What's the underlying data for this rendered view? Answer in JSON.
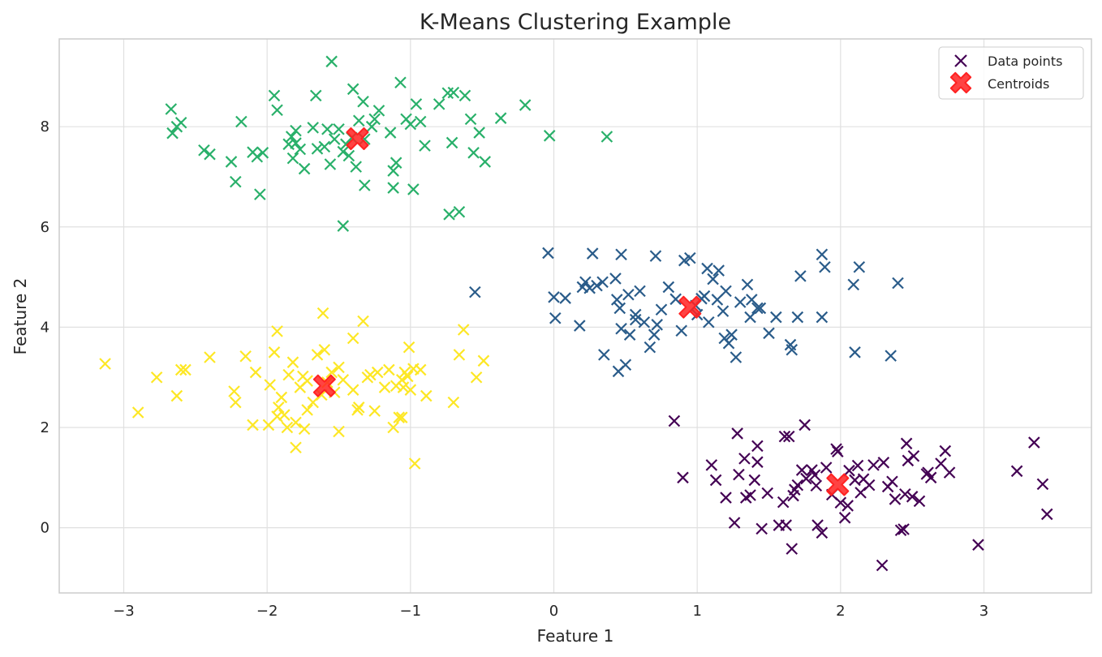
{
  "chart_data": {
    "type": "scatter",
    "title": "K-Means Clustering Example",
    "xlabel": "Feature 1",
    "ylabel": "Feature 2",
    "xlim": [
      -3.45,
      3.75
    ],
    "ylim": [
      -1.3,
      9.75
    ],
    "xticks": [
      -3,
      -2,
      -1,
      0,
      1,
      2,
      3
    ],
    "yticks": [
      0,
      2,
      4,
      6,
      8
    ],
    "xtick_labels": [
      "−3",
      "−2",
      "−1",
      "0",
      "1",
      "2",
      "3"
    ],
    "ytick_labels": [
      "0",
      "2",
      "4",
      "6",
      "8"
    ],
    "grid": true,
    "legend_position": "top-right",
    "marker": "x",
    "legend": [
      {
        "label": "Data points",
        "marker": "x",
        "color": "#440154"
      },
      {
        "label": "Centroids",
        "marker": "X",
        "color": "#ff2222"
      }
    ],
    "clusters": [
      {
        "color": "#440154",
        "points": [
          [
            0.9,
            1.0
          ],
          [
            0.84,
            2.13
          ],
          [
            1.1,
            1.25
          ],
          [
            1.13,
            0.95
          ],
          [
            1.2,
            0.6
          ],
          [
            1.26,
            0.1
          ],
          [
            1.28,
            1.88
          ],
          [
            1.29,
            1.06
          ],
          [
            1.33,
            1.38
          ],
          [
            1.34,
            0.6
          ],
          [
            1.37,
            0.65
          ],
          [
            1.4,
            0.95
          ],
          [
            1.42,
            1.63
          ],
          [
            1.42,
            1.31
          ],
          [
            1.45,
            -0.02
          ],
          [
            1.49,
            0.69
          ],
          [
            1.57,
            0.05
          ],
          [
            1.6,
            0.51
          ],
          [
            1.61,
            1.82
          ],
          [
            1.62,
            0.05
          ],
          [
            1.64,
            1.82
          ],
          [
            1.66,
            -0.42
          ],
          [
            1.67,
            0.64
          ],
          [
            1.68,
            0.76
          ],
          [
            1.7,
            0.85
          ],
          [
            1.73,
            1.15
          ],
          [
            1.75,
            2.05
          ],
          [
            1.76,
            0.98
          ],
          [
            1.8,
            1.15
          ],
          [
            1.82,
            1.05
          ],
          [
            1.83,
            0.84
          ],
          [
            1.84,
            0.05
          ],
          [
            1.87,
            -0.1
          ],
          [
            1.9,
            1.2
          ],
          [
            1.94,
            0.66
          ],
          [
            1.97,
            1.57
          ],
          [
            1.98,
            1.52
          ],
          [
            2.0,
            0.5
          ],
          [
            2.03,
            0.2
          ],
          [
            2.05,
            0.44
          ],
          [
            2.06,
            1.14
          ],
          [
            2.1,
            0.95
          ],
          [
            2.12,
            1.24
          ],
          [
            2.14,
            0.7
          ],
          [
            2.16,
            0.97
          ],
          [
            2.2,
            0.85
          ],
          [
            2.23,
            1.25
          ],
          [
            2.29,
            -0.75
          ],
          [
            2.3,
            1.3
          ],
          [
            2.33,
            0.82
          ],
          [
            2.36,
            0.92
          ],
          [
            2.38,
            0.57
          ],
          [
            2.42,
            -0.05
          ],
          [
            2.44,
            -0.03
          ],
          [
            2.45,
            0.67
          ],
          [
            2.46,
            1.68
          ],
          [
            2.47,
            1.34
          ],
          [
            2.5,
            0.62
          ],
          [
            2.51,
            1.43
          ],
          [
            2.55,
            0.53
          ],
          [
            2.6,
            1.07
          ],
          [
            2.61,
            1.1
          ],
          [
            2.63,
            1.0
          ],
          [
            2.7,
            1.28
          ],
          [
            2.73,
            1.53
          ],
          [
            2.76,
            1.1
          ],
          [
            2.96,
            -0.34
          ],
          [
            3.23,
            1.13
          ],
          [
            3.35,
            1.7
          ],
          [
            3.41,
            0.87
          ],
          [
            3.44,
            0.27
          ]
        ]
      },
      {
        "color": "#21908d",
        "display_color": "#2a5c8a",
        "points": [
          [
            -0.55,
            4.7
          ],
          [
            -0.04,
            5.48
          ],
          [
            0.0,
            4.6
          ],
          [
            0.01,
            4.18
          ],
          [
            0.08,
            4.58
          ],
          [
            0.18,
            4.03
          ],
          [
            0.2,
            4.8
          ],
          [
            0.22,
            4.9
          ],
          [
            0.25,
            4.78
          ],
          [
            0.27,
            5.47
          ],
          [
            0.3,
            4.83
          ],
          [
            0.34,
            4.9
          ],
          [
            0.35,
            3.45
          ],
          [
            0.43,
            4.97
          ],
          [
            0.44,
            4.55
          ],
          [
            0.45,
            3.12
          ],
          [
            0.46,
            4.38
          ],
          [
            0.47,
            5.45
          ],
          [
            0.47,
            3.97
          ],
          [
            0.5,
            3.25
          ],
          [
            0.52,
            4.65
          ],
          [
            0.53,
            3.85
          ],
          [
            0.57,
            4.25
          ],
          [
            0.57,
            4.15
          ],
          [
            0.6,
            4.72
          ],
          [
            0.63,
            4.1
          ],
          [
            0.67,
            3.6
          ],
          [
            0.7,
            3.85
          ],
          [
            0.71,
            5.42
          ],
          [
            0.72,
            4.05
          ],
          [
            0.75,
            4.35
          ],
          [
            0.8,
            4.8
          ],
          [
            0.85,
            4.56
          ],
          [
            0.89,
            3.93
          ],
          [
            0.91,
            5.33
          ],
          [
            0.95,
            5.38
          ],
          [
            0.99,
            4.43
          ],
          [
            1.0,
            4.25
          ],
          [
            1.03,
            4.57
          ],
          [
            1.05,
            4.62
          ],
          [
            1.07,
            5.17
          ],
          [
            1.08,
            4.1
          ],
          [
            1.11,
            4.96
          ],
          [
            1.14,
            4.55
          ],
          [
            1.15,
            5.13
          ],
          [
            1.18,
            4.32
          ],
          [
            1.19,
            3.78
          ],
          [
            1.2,
            4.72
          ],
          [
            1.22,
            3.68
          ],
          [
            1.24,
            3.85
          ],
          [
            1.27,
            3.4
          ],
          [
            1.3,
            4.5
          ],
          [
            1.35,
            4.85
          ],
          [
            1.37,
            4.2
          ],
          [
            1.38,
            4.55
          ],
          [
            1.42,
            4.38
          ],
          [
            1.44,
            4.38
          ],
          [
            1.5,
            3.88
          ],
          [
            1.55,
            4.2
          ],
          [
            1.65,
            3.65
          ],
          [
            1.66,
            3.55
          ],
          [
            1.7,
            4.2
          ],
          [
            1.72,
            5.02
          ],
          [
            1.87,
            5.45
          ],
          [
            1.87,
            4.2
          ],
          [
            1.89,
            5.2
          ],
          [
            2.09,
            4.85
          ],
          [
            2.1,
            3.5
          ],
          [
            2.13,
            5.2
          ],
          [
            2.35,
            3.43
          ],
          [
            2.4,
            4.88
          ]
        ]
      },
      {
        "color": "#22a884",
        "display_color": "#29b06a",
        "points": [
          [
            -2.67,
            8.35
          ],
          [
            -2.66,
            7.87
          ],
          [
            -2.63,
            8.0
          ],
          [
            -2.6,
            8.08
          ],
          [
            -2.44,
            7.53
          ],
          [
            -2.4,
            7.45
          ],
          [
            -2.25,
            7.3
          ],
          [
            -2.22,
            6.9
          ],
          [
            -2.18,
            8.1
          ],
          [
            -2.1,
            7.49
          ],
          [
            -2.07,
            7.4
          ],
          [
            -2.05,
            6.65
          ],
          [
            -2.03,
            7.48
          ],
          [
            -1.95,
            8.62
          ],
          [
            -1.93,
            8.33
          ],
          [
            -1.85,
            7.65
          ],
          [
            -1.83,
            7.8
          ],
          [
            -1.82,
            7.37
          ],
          [
            -1.8,
            7.67
          ],
          [
            -1.8,
            7.92
          ],
          [
            -1.77,
            7.55
          ],
          [
            -1.74,
            7.16
          ],
          [
            -1.68,
            7.98
          ],
          [
            -1.66,
            8.62
          ],
          [
            -1.65,
            7.56
          ],
          [
            -1.6,
            7.6
          ],
          [
            -1.58,
            7.95
          ],
          [
            -1.56,
            7.25
          ],
          [
            -1.53,
            7.75
          ],
          [
            -1.5,
            7.95
          ],
          [
            -1.47,
            7.5
          ],
          [
            -1.45,
            7.65
          ],
          [
            -1.43,
            7.42
          ],
          [
            -1.41,
            7.78
          ],
          [
            -1.4,
            8.75
          ],
          [
            -1.38,
            7.2
          ],
          [
            -1.36,
            8.12
          ],
          [
            -1.33,
            8.5
          ],
          [
            -1.32,
            6.83
          ],
          [
            -1.27,
            8.0
          ],
          [
            -1.25,
            8.15
          ],
          [
            -1.22,
            8.32
          ],
          [
            -1.14,
            7.88
          ],
          [
            -1.12,
            7.12
          ],
          [
            -1.12,
            6.78
          ],
          [
            -1.1,
            7.28
          ],
          [
            -1.07,
            8.88
          ],
          [
            -1.03,
            8.15
          ],
          [
            -1.0,
            8.05
          ],
          [
            -0.98,
            6.75
          ],
          [
            -0.96,
            8.45
          ],
          [
            -0.93,
            8.1
          ],
          [
            -0.9,
            7.62
          ],
          [
            -0.8,
            8.45
          ],
          [
            -0.74,
            8.67
          ],
          [
            -0.71,
            7.68
          ],
          [
            -0.7,
            8.68
          ],
          [
            -0.66,
            6.3
          ],
          [
            -0.62,
            8.62
          ],
          [
            -0.58,
            8.15
          ],
          [
            -0.56,
            7.48
          ],
          [
            -0.52,
            7.88
          ],
          [
            -0.48,
            7.3
          ],
          [
            -0.37,
            8.17
          ],
          [
            -0.2,
            8.43
          ],
          [
            -0.03,
            7.82
          ],
          [
            0.37,
            7.8
          ],
          [
            -1.55,
            9.3
          ],
          [
            -1.47,
            6.02
          ],
          [
            -0.73,
            6.25
          ],
          [
            -1.32,
            7.75
          ]
        ]
      },
      {
        "color": "#fde725",
        "points": [
          [
            -3.13,
            3.27
          ],
          [
            -2.9,
            2.3
          ],
          [
            -2.77,
            3.0
          ],
          [
            -2.63,
            2.63
          ],
          [
            -2.6,
            3.15
          ],
          [
            -2.57,
            3.15
          ],
          [
            -2.4,
            3.4
          ],
          [
            -2.23,
            2.72
          ],
          [
            -2.22,
            2.5
          ],
          [
            -2.15,
            3.42
          ],
          [
            -2.1,
            2.05
          ],
          [
            -2.08,
            3.1
          ],
          [
            -1.99,
            2.05
          ],
          [
            -1.98,
            2.85
          ],
          [
            -1.95,
            3.5
          ],
          [
            -1.93,
            3.92
          ],
          [
            -1.92,
            2.4
          ],
          [
            -1.9,
            2.6
          ],
          [
            -1.88,
            2.25
          ],
          [
            -1.85,
            3.05
          ],
          [
            -1.82,
            3.3
          ],
          [
            -1.8,
            2.1
          ],
          [
            -1.8,
            1.6
          ],
          [
            -1.77,
            2.8
          ],
          [
            -1.75,
            3.02
          ],
          [
            -1.74,
            1.97
          ],
          [
            -1.72,
            2.35
          ],
          [
            -1.68,
            2.5
          ],
          [
            -1.65,
            3.45
          ],
          [
            -1.62,
            2.65
          ],
          [
            -1.6,
            3.55
          ],
          [
            -1.58,
            2.9
          ],
          [
            -1.5,
            3.2
          ],
          [
            -1.5,
            1.92
          ],
          [
            -1.4,
            2.75
          ],
          [
            -1.37,
            2.35
          ],
          [
            -1.36,
            2.4
          ],
          [
            -1.33,
            4.12
          ],
          [
            -1.3,
            3.0
          ],
          [
            -1.25,
            2.33
          ],
          [
            -1.23,
            3.1
          ],
          [
            -1.18,
            2.8
          ],
          [
            -1.15,
            3.15
          ],
          [
            -1.12,
            2.0
          ],
          [
            -1.1,
            2.83
          ],
          [
            -1.08,
            2.2
          ],
          [
            -1.06,
            2.95
          ],
          [
            -1.05,
            2.8
          ],
          [
            -1.04,
            3.1
          ],
          [
            -1.02,
            3.02
          ],
          [
            -1.0,
            2.75
          ],
          [
            -0.98,
            3.17
          ],
          [
            -0.97,
            1.28
          ],
          [
            -0.93,
            3.15
          ],
          [
            -0.89,
            2.63
          ],
          [
            -0.7,
            2.5
          ],
          [
            -0.66,
            3.45
          ],
          [
            -0.63,
            3.95
          ],
          [
            -0.54,
            3.0
          ],
          [
            -0.49,
            3.33
          ],
          [
            -1.61,
            4.28
          ],
          [
            -1.4,
            3.78
          ],
          [
            -1.01,
            3.6
          ],
          [
            -1.06,
            2.2
          ],
          [
            -1.72,
            2.93
          ],
          [
            -1.93,
            2.22
          ],
          [
            -1.86,
            2.0
          ],
          [
            -1.55,
            3.1
          ],
          [
            -1.47,
            2.95
          ],
          [
            -1.53,
            2.7
          ],
          [
            -1.28,
            3.05
          ]
        ]
      }
    ],
    "centroids": [
      [
        1.98,
        0.86
      ],
      [
        0.95,
        4.4
      ],
      [
        -1.37,
        7.76
      ],
      [
        -1.6,
        2.83
      ]
    ]
  }
}
